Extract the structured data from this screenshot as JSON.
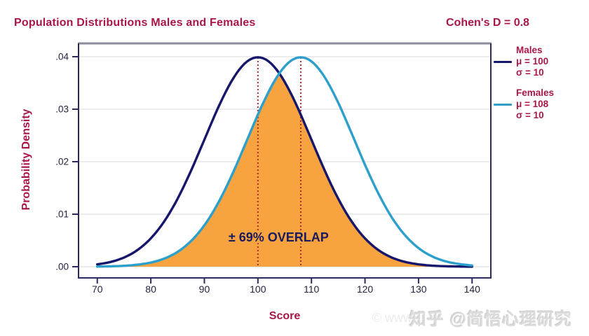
{
  "header": {
    "title": "Population Distributions Males and Females",
    "annotation": "Cohen's D = 0.8"
  },
  "axes": {
    "x_label": "Score",
    "y_label": "Probability Density",
    "x_tick_labels": [
      "70",
      "80",
      "90",
      "100",
      "110",
      "120",
      "130",
      "140"
    ],
    "y_tick_labels": [
      ".00",
      ".01",
      ".02",
      ".03",
      ".04"
    ]
  },
  "legend": {
    "entries": [
      {
        "name": "Males",
        "mu_label": "μ = 100",
        "sigma_label": "σ = 10",
        "color": "#16166B"
      },
      {
        "name": "Females",
        "mu_label": "μ = 108",
        "sigma_label": "σ = 10",
        "color": "#2D9FCB"
      }
    ]
  },
  "overlap": {
    "label": "± 69% OVERLAP",
    "percent": 69
  },
  "watermark": {
    "main": "知乎 @简悟心理研究",
    "sub": "© www"
  },
  "colors": {
    "title_text": "#A81747",
    "males_line": "#16166B",
    "females_line": "#2D9FCB",
    "overlap_fill": "#F7A33F",
    "mean_marker": "#B22A2E",
    "overlap_text": "#1A1A5E",
    "tick_text": "#23233F",
    "frame": "#2B2B5E",
    "frame_top": "#8B8B9B",
    "gridline": "#D9D9D9"
  },
  "chart_data": {
    "type": "line",
    "title": "Population Distributions Males and Females",
    "xlabel": "Score",
    "ylabel": "Probability Density",
    "xlim": [
      66.5,
      143.5
    ],
    "ylim": [
      0,
      0.0426
    ],
    "x_ticks": [
      70,
      80,
      90,
      100,
      110,
      120,
      130,
      140
    ],
    "y_ticks": [
      0.0,
      0.01,
      0.02,
      0.03,
      0.04
    ],
    "grid": true,
    "legend_position": "right",
    "cohens_d": 0.8,
    "curve_range": [
      70,
      140
    ],
    "x_sample": [
      70,
      75,
      80,
      85,
      90,
      95,
      100,
      105,
      110,
      115,
      120,
      125,
      130,
      135,
      140
    ],
    "series": [
      {
        "name": "Males",
        "distribution": "normal",
        "mu": 100,
        "sigma": 10,
        "peak_density": 0.0399,
        "color": "#16166B",
        "values": [
          0.00044,
          0.00175,
          0.0054,
          0.01295,
          0.0242,
          0.03521,
          0.03989,
          0.03521,
          0.0242,
          0.01295,
          0.0054,
          0.00175,
          0.00044,
          9e-05,
          1e-05
        ]
      },
      {
        "name": "Females",
        "distribution": "normal",
        "mu": 108,
        "sigma": 10,
        "peak_density": 0.0399,
        "color": "#2D9FCB",
        "values": [
          3e-05,
          0.00017,
          0.00079,
          0.00283,
          0.0079,
          0.01714,
          0.02897,
          0.03814,
          0.0391,
          0.03123,
          0.01942,
          0.0094,
          0.00355,
          0.00104,
          0.00024
        ]
      }
    ],
    "overlap_region": {
      "definition": "min of the two normal densities",
      "percent_label": "± 69% OVERLAP",
      "fill_color": "#F7A33F"
    },
    "mean_markers": [
      100,
      108
    ]
  }
}
